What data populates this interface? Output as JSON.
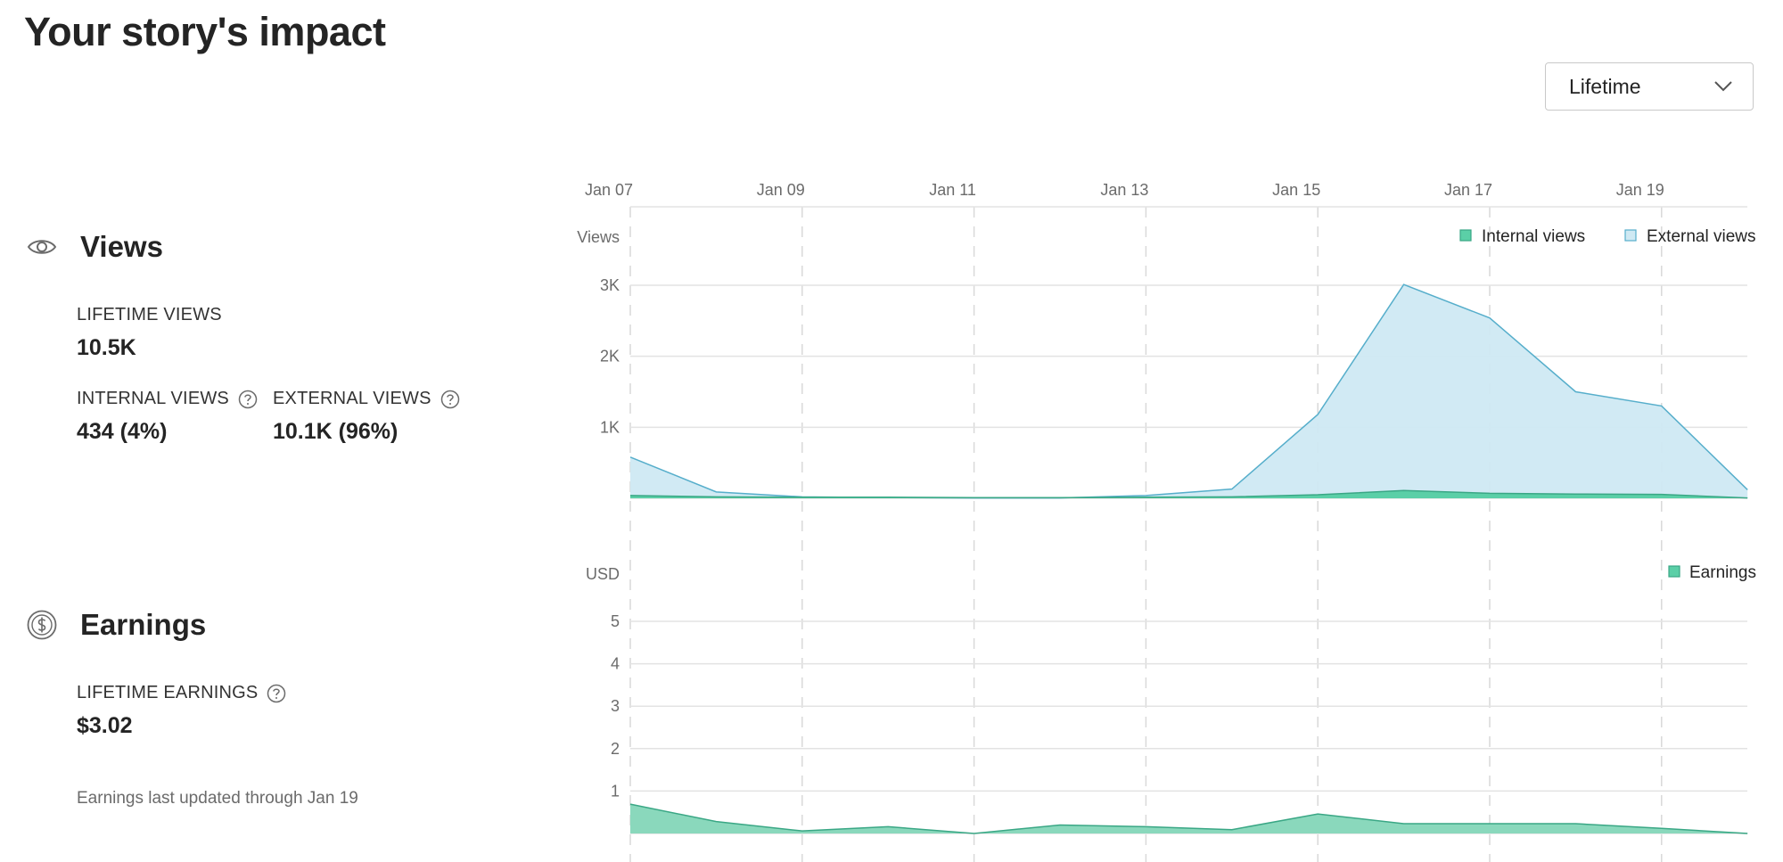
{
  "page": {
    "title": "Your story's impact"
  },
  "range_select": {
    "value": "Lifetime"
  },
  "views": {
    "title": "Views",
    "lifetime_label": "LIFETIME VIEWS",
    "lifetime_value": "10.5K",
    "internal_label": "INTERNAL VIEWS",
    "internal_value": "434 (4%)",
    "external_label": "EXTERNAL VIEWS",
    "external_value": "10.1K (96%)"
  },
  "earnings": {
    "title": "Earnings",
    "lifetime_label": "LIFETIME EARNINGS",
    "lifetime_value": "$3.02",
    "footnote": "Earnings last updated through Jan 19"
  },
  "icons": {
    "views": "eye-icon",
    "earnings": "dollar-coin-icon",
    "help": "question-circle-icon",
    "dropdown": "chevron-down-icon"
  },
  "colors": {
    "internal": "#5bcfa7",
    "internal_line": "#3aa785",
    "external": "#cfe9f3",
    "external_line": "#56aecb",
    "earnings": "#8ad8bc",
    "earnings_line": "#3aa785",
    "grid": "#e3e3e3"
  },
  "chart_data": [
    {
      "type": "area",
      "x_ticks": [
        "Jan 07",
        "Jan 09",
        "Jan 11",
        "Jan 13",
        "Jan 15",
        "Jan 17",
        "Jan 19"
      ],
      "x": [
        "Jan 07",
        "Jan 08",
        "Jan 09",
        "Jan 10",
        "Jan 11",
        "Jan 12",
        "Jan 13",
        "Jan 14",
        "Jan 15",
        "Jan 16",
        "Jan 17",
        "Jan 18",
        "Jan 19",
        "Jan 20"
      ],
      "ylabel": "Views",
      "y_ticks": [
        "1K",
        "2K",
        "3K"
      ],
      "ylim": [
        0,
        3000
      ],
      "series": [
        {
          "name": "Internal views",
          "values": [
            40,
            20,
            15,
            15,
            10,
            10,
            15,
            20,
            50,
            110,
            70,
            60,
            55,
            5
          ]
        },
        {
          "name": "External views",
          "values": [
            580,
            90,
            20,
            10,
            5,
            5,
            40,
            130,
            1180,
            3010,
            2540,
            1500,
            1300,
            120
          ]
        }
      ],
      "legend": [
        "Internal views",
        "External views"
      ],
      "legend_position": "top-right",
      "grid": true
    },
    {
      "type": "area",
      "x": [
        "Jan 07",
        "Jan 08",
        "Jan 09",
        "Jan 10",
        "Jan 11",
        "Jan 12",
        "Jan 13",
        "Jan 14",
        "Jan 15",
        "Jan 16",
        "Jan 17",
        "Jan 18",
        "Jan 19",
        "Jan 20"
      ],
      "ylabel": "USD",
      "y_ticks": [
        "1",
        "2",
        "3",
        "4",
        "5"
      ],
      "ylim": [
        0,
        5
      ],
      "series": [
        {
          "name": "Earnings",
          "values": [
            0.69,
            0.28,
            0.06,
            0.16,
            0.0,
            0.2,
            0.16,
            0.09,
            0.46,
            0.23,
            0.23,
            0.23,
            0.12,
            0.0
          ]
        }
      ],
      "legend": [
        "Earnings"
      ],
      "legend_position": "top-right",
      "grid": true
    }
  ]
}
